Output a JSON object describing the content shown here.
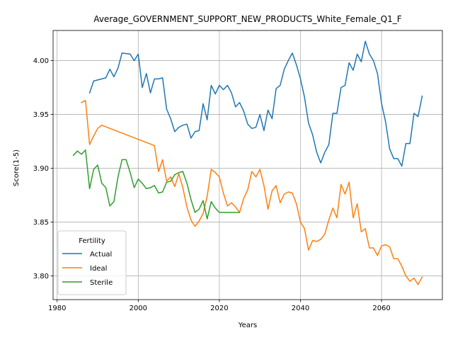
{
  "chart_data": {
    "type": "line",
    "title": "Average_GOVERNMENT_SUPPORT_NEW_PRODUCTS_White_Female_Q1_F",
    "xlabel": "Years",
    "ylabel": "Score(1-5)",
    "xlim": [
      1979,
      2075
    ],
    "ylim": [
      3.778,
      4.028
    ],
    "x_ticks": [
      1980,
      2000,
      2020,
      2040,
      2060
    ],
    "y_ticks": [
      3.8,
      3.85,
      3.9,
      3.95,
      4.0
    ],
    "x_tick_labels": [
      "1980",
      "2000",
      "2020",
      "2040",
      "2060"
    ],
    "y_tick_labels": [
      "3.80",
      "3.85",
      "3.90",
      "3.95",
      "4.00"
    ],
    "grid": true,
    "legend": {
      "title": "Fertility",
      "placement": "lower-left"
    },
    "series": [
      {
        "name": "Actual",
        "color": "#1f77b4",
        "points": [
          [
            1988,
            3.97
          ],
          [
            1989,
            3.981
          ],
          [
            1990,
            3.982
          ],
          [
            1992,
            3.984
          ],
          [
            1993,
            3.992
          ],
          [
            1994,
            3.985
          ],
          [
            1995,
            3.993
          ],
          [
            1996,
            4.007
          ],
          [
            1998,
            4.006
          ],
          [
            1999,
            4.0
          ],
          [
            2000,
            4.006
          ],
          [
            2001,
            3.975
          ],
          [
            2002,
            3.988
          ],
          [
            2003,
            3.97
          ],
          [
            2004,
            3.983
          ],
          [
            2005,
            3.983
          ],
          [
            2006,
            3.984
          ],
          [
            2007,
            3.955
          ],
          [
            2008,
            3.946
          ],
          [
            2009,
            3.934
          ],
          [
            2010,
            3.938
          ],
          [
            2011,
            3.94
          ],
          [
            2012,
            3.941
          ],
          [
            2013,
            3.928
          ],
          [
            2014,
            3.934
          ],
          [
            2015,
            3.935
          ],
          [
            2016,
            3.96
          ],
          [
            2017,
            3.945
          ],
          [
            2018,
            3.977
          ],
          [
            2019,
            3.969
          ],
          [
            2020,
            3.977
          ],
          [
            2021,
            3.973
          ],
          [
            2022,
            3.977
          ],
          [
            2023,
            3.97
          ],
          [
            2024,
            3.957
          ],
          [
            2025,
            3.961
          ],
          [
            2026,
            3.953
          ],
          [
            2027,
            3.941
          ],
          [
            2028,
            3.937
          ],
          [
            2029,
            3.938
          ],
          [
            2030,
            3.95
          ],
          [
            2031,
            3.935
          ],
          [
            2032,
            3.954
          ],
          [
            2033,
            3.946
          ],
          [
            2034,
            3.974
          ],
          [
            2035,
            3.977
          ],
          [
            2036,
            3.992
          ],
          [
            2037,
            4.0
          ],
          [
            2038,
            4.007
          ],
          [
            2039,
            3.996
          ],
          [
            2040,
            3.983
          ],
          [
            2041,
            3.966
          ],
          [
            2042,
            3.942
          ],
          [
            2043,
            3.931
          ],
          [
            2044,
            3.915
          ],
          [
            2045,
            3.905
          ],
          [
            2046,
            3.915
          ],
          [
            2047,
            3.922
          ],
          [
            2048,
            3.951
          ],
          [
            2049,
            3.951
          ],
          [
            2050,
            3.975
          ],
          [
            2051,
            3.977
          ],
          [
            2052,
            3.998
          ],
          [
            2053,
            3.991
          ],
          [
            2054,
            4.006
          ],
          [
            2055,
            3.999
          ],
          [
            2056,
            4.018
          ],
          [
            2057,
            4.006
          ],
          [
            2058,
            4.0
          ],
          [
            2059,
            3.988
          ],
          [
            2060,
            3.96
          ],
          [
            2061,
            3.943
          ],
          [
            2062,
            3.918
          ],
          [
            2063,
            3.909
          ],
          [
            2064,
            3.909
          ],
          [
            2065,
            3.902
          ],
          [
            2066,
            3.923
          ],
          [
            2067,
            3.923
          ],
          [
            2068,
            3.951
          ],
          [
            2069,
            3.948
          ],
          [
            2070,
            3.967
          ]
        ]
      },
      {
        "name": "Ideal",
        "color": "#ff7f0e",
        "points": [
          [
            1986,
            3.961
          ],
          [
            1987,
            3.963
          ],
          [
            1988,
            3.922
          ],
          [
            1989,
            3.93
          ],
          [
            1990,
            3.937
          ],
          [
            1991,
            3.94
          ],
          [
            2004,
            3.921
          ],
          [
            2005,
            3.897
          ],
          [
            2006,
            3.908
          ],
          [
            2007,
            3.888
          ],
          [
            2008,
            3.892
          ],
          [
            2009,
            3.883
          ],
          [
            2010,
            3.895
          ],
          [
            2011,
            3.882
          ],
          [
            2012,
            3.864
          ],
          [
            2013,
            3.852
          ],
          [
            2014,
            3.846
          ],
          [
            2015,
            3.851
          ],
          [
            2016,
            3.858
          ],
          [
            2017,
            3.874
          ],
          [
            2018,
            3.899
          ],
          [
            2019,
            3.896
          ],
          [
            2020,
            3.892
          ],
          [
            2021,
            3.877
          ],
          [
            2022,
            3.865
          ],
          [
            2023,
            3.868
          ],
          [
            2024,
            3.864
          ],
          [
            2025,
            3.859
          ],
          [
            2026,
            3.872
          ],
          [
            2027,
            3.88
          ],
          [
            2028,
            3.897
          ],
          [
            2029,
            3.892
          ],
          [
            2030,
            3.899
          ],
          [
            2031,
            3.884
          ],
          [
            2032,
            3.862
          ],
          [
            2033,
            3.879
          ],
          [
            2034,
            3.884
          ],
          [
            2035,
            3.868
          ],
          [
            2036,
            3.876
          ],
          [
            2037,
            3.878
          ],
          [
            2038,
            3.877
          ],
          [
            2039,
            3.867
          ],
          [
            2040,
            3.85
          ],
          [
            2041,
            3.844
          ],
          [
            2042,
            3.824
          ],
          [
            2043,
            3.833
          ],
          [
            2044,
            3.832
          ],
          [
            2045,
            3.834
          ],
          [
            2046,
            3.839
          ],
          [
            2047,
            3.852
          ],
          [
            2048,
            3.863
          ],
          [
            2049,
            3.854
          ],
          [
            2050,
            3.885
          ],
          [
            2051,
            3.876
          ],
          [
            2052,
            3.887
          ],
          [
            2053,
            3.854
          ],
          [
            2054,
            3.867
          ],
          [
            2055,
            3.841
          ],
          [
            2056,
            3.844
          ],
          [
            2057,
            3.826
          ],
          [
            2058,
            3.826
          ],
          [
            2059,
            3.819
          ],
          [
            2060,
            3.828
          ],
          [
            2061,
            3.829
          ],
          [
            2062,
            3.827
          ],
          [
            2063,
            3.816
          ],
          [
            2064,
            3.816
          ],
          [
            2065,
            3.809
          ],
          [
            2066,
            3.8
          ],
          [
            2067,
            3.795
          ],
          [
            2068,
            3.798
          ],
          [
            2069,
            3.792
          ],
          [
            2070,
            3.799
          ]
        ]
      },
      {
        "name": "Sterile",
        "color": "#2ca02c",
        "points": [
          [
            1984,
            3.912
          ],
          [
            1985,
            3.916
          ],
          [
            1986,
            3.913
          ],
          [
            1987,
            3.917
          ],
          [
            1988,
            3.881
          ],
          [
            1989,
            3.899
          ],
          [
            1990,
            3.903
          ],
          [
            1991,
            3.886
          ],
          [
            1992,
            3.882
          ],
          [
            1993,
            3.865
          ],
          [
            1994,
            3.869
          ],
          [
            1995,
            3.892
          ],
          [
            1996,
            3.908
          ],
          [
            1997,
            3.908
          ],
          [
            1998,
            3.896
          ],
          [
            1999,
            3.882
          ],
          [
            2000,
            3.89
          ],
          [
            2001,
            3.886
          ],
          [
            2002,
            3.881
          ],
          [
            2003,
            3.882
          ],
          [
            2004,
            3.884
          ],
          [
            2005,
            3.877
          ],
          [
            2006,
            3.878
          ],
          [
            2007,
            3.887
          ],
          [
            2008,
            3.888
          ],
          [
            2009,
            3.894
          ],
          [
            2010,
            3.896
          ],
          [
            2011,
            3.897
          ],
          [
            2012,
            3.886
          ],
          [
            2013,
            3.871
          ],
          [
            2014,
            3.859
          ],
          [
            2015,
            3.862
          ],
          [
            2016,
            3.87
          ],
          [
            2017,
            3.853
          ],
          [
            2018,
            3.869
          ],
          [
            2019,
            3.863
          ],
          [
            2020,
            3.859
          ],
          [
            2021,
            3.859
          ],
          [
            2022,
            3.859
          ],
          [
            2023,
            3.859
          ],
          [
            2024,
            3.859
          ],
          [
            2025,
            3.859
          ]
        ]
      }
    ]
  }
}
